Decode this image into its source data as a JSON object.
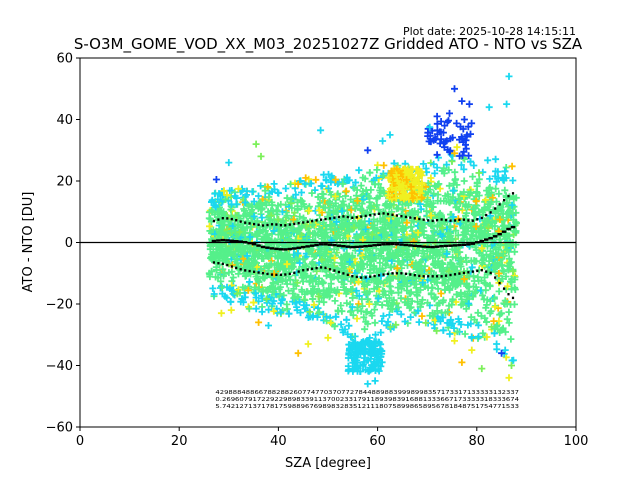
{
  "chart_data": {
    "type": "scatter",
    "plot_date": "Plot date: 2025-10-28 14:15:11",
    "title": "S-O3M_GOME_VOD_XX_M03_20251027Z Gridded ATO - NTO vs SZA",
    "xlabel": "SZA [degree]",
    "ylabel": "ATO - NTO [DU]",
    "xlim": [
      0,
      100
    ],
    "ylim": [
      -60,
      60
    ],
    "xticks": [
      "0",
      "20",
      "40",
      "60",
      "80",
      "100"
    ],
    "yticks": [
      "−60",
      "−40",
      "−20",
      "0",
      "20",
      "40",
      "60"
    ],
    "marker": "+",
    "colors": {
      "dense": "#55f08a",
      "cyan": "#1ad8f0",
      "green": "#7cf05a",
      "yellow": "#f0f020",
      "orange": "#ffc000",
      "blue": "#1040f0",
      "black": "#000000",
      "zero_line": "#000000"
    },
    "sza_bins": [
      27,
      29,
      31,
      33,
      35,
      37,
      39,
      41,
      43,
      45,
      47,
      49,
      51,
      53,
      55,
      57,
      59,
      61,
      63,
      65,
      67,
      69,
      71,
      73,
      75,
      77,
      79,
      81,
      83,
      85,
      87
    ],
    "mean": [
      0.5,
      0.8,
      0.5,
      0.2,
      -0.5,
      -1.5,
      -2,
      -2.3,
      -2,
      -1.5,
      -1,
      -0.5,
      -0.8,
      -1.2,
      -1.5,
      -1.3,
      -1,
      -0.6,
      -0.5,
      -0.7,
      -1,
      -1.3,
      -1.5,
      -1.2,
      -1,
      -0.8,
      -0.5,
      0.5,
      1.5,
      3,
      5
    ],
    "mean_plus_std": [
      7,
      8,
      7.5,
      6.5,
      6,
      5.5,
      6,
      5.5,
      6,
      6.5,
      7,
      7.5,
      8,
      8.5,
      8,
      8.5,
      9,
      9.5,
      9,
      8.5,
      8,
      7.5,
      7,
      7.5,
      7,
      7.5,
      7,
      8,
      10,
      13,
      16
    ],
    "mean_minus_std": [
      -6.5,
      -7,
      -8,
      -9,
      -9.5,
      -10,
      -10.5,
      -10.5,
      -10,
      -9,
      -8.5,
      -8,
      -9,
      -10,
      -11,
      -11.5,
      -11,
      -10.5,
      -10,
      -10,
      -10.5,
      -11,
      -11,
      -11,
      -10.5,
      -10,
      -9.5,
      -9,
      -10,
      -14,
      -18
    ],
    "spread_upper": [
      16,
      17,
      17,
      18,
      18,
      19,
      19,
      20,
      20,
      21,
      22,
      22,
      23,
      23,
      24,
      24,
      25,
      26,
      26,
      27,
      26,
      26,
      27,
      28,
      29,
      28,
      27,
      26,
      25,
      24,
      22
    ],
    "spread_lower": [
      -18,
      -19,
      -20,
      -21,
      -22,
      -23,
      -24,
      -24,
      -24,
      -25,
      -25,
      -26,
      -28,
      -30,
      -32,
      -36,
      -34,
      -30,
      -28,
      -27,
      -28,
      -30,
      -31,
      -30,
      -30,
      -31,
      -32,
      -33,
      -34,
      -36,
      -40
    ],
    "outliers": [
      {
        "x": 27.5,
        "y": 20.5,
        "c": "blue"
      },
      {
        "x": 30,
        "y": 26,
        "c": "cyan"
      },
      {
        "x": 35.5,
        "y": 32,
        "c": "green"
      },
      {
        "x": 36.5,
        "y": 28,
        "c": "green"
      },
      {
        "x": 36,
        "y": -26,
        "c": "orange"
      },
      {
        "x": 38,
        "y": -27,
        "c": "cyan"
      },
      {
        "x": 44,
        "y": -36,
        "c": "orange"
      },
      {
        "x": 46,
        "y": -33,
        "c": "yellow"
      },
      {
        "x": 48.5,
        "y": 36.5,
        "c": "cyan"
      },
      {
        "x": 50,
        "y": -31,
        "c": "yellow"
      },
      {
        "x": 56.5,
        "y": -40,
        "c": "cyan"
      },
      {
        "x": 58,
        "y": -46,
        "c": "cyan"
      },
      {
        "x": 59.5,
        "y": -45,
        "c": "cyan"
      },
      {
        "x": 58,
        "y": 30,
        "c": "blue"
      },
      {
        "x": 61,
        "y": 33,
        "c": "cyan"
      },
      {
        "x": 62.5,
        "y": 35,
        "c": "cyan"
      },
      {
        "x": 70.5,
        "y": 37.5,
        "c": "cyan"
      },
      {
        "x": 72,
        "y": 41,
        "c": "blue"
      },
      {
        "x": 73.5,
        "y": 38,
        "c": "blue"
      },
      {
        "x": 74.5,
        "y": 42,
        "c": "blue"
      },
      {
        "x": 75.5,
        "y": 50,
        "c": "blue"
      },
      {
        "x": 77,
        "y": 46,
        "c": "blue"
      },
      {
        "x": 77.5,
        "y": 40,
        "c": "blue"
      },
      {
        "x": 78.5,
        "y": 45,
        "c": "blue"
      },
      {
        "x": 82.5,
        "y": 44,
        "c": "cyan"
      },
      {
        "x": 86.5,
        "y": 54,
        "c": "cyan"
      },
      {
        "x": 86,
        "y": 45,
        "c": "cyan"
      },
      {
        "x": 76,
        "y": 31,
        "c": "yellow"
      },
      {
        "x": 75.5,
        "y": 29,
        "c": "orange"
      },
      {
        "x": 67,
        "y": 22,
        "c": "yellow"
      },
      {
        "x": 65.5,
        "y": 24,
        "c": "yellow"
      },
      {
        "x": 64,
        "y": 20,
        "c": "yellow"
      },
      {
        "x": 75.5,
        "y": -32,
        "c": "yellow"
      },
      {
        "x": 77,
        "y": -39,
        "c": "orange"
      },
      {
        "x": 79,
        "y": -35,
        "c": "yellow"
      },
      {
        "x": 81,
        "y": -41,
        "c": "green"
      },
      {
        "x": 85,
        "y": -36,
        "c": "blue"
      },
      {
        "x": 86.5,
        "y": -44,
        "c": "yellow"
      },
      {
        "x": 87,
        "y": -40,
        "c": "green"
      },
      {
        "x": 84,
        "y": -33,
        "c": "cyan"
      },
      {
        "x": 44,
        "y": 19,
        "c": "orange"
      },
      {
        "x": 45.5,
        "y": 21,
        "c": "orange"
      },
      {
        "x": 30.5,
        "y": -22,
        "c": "yellow"
      },
      {
        "x": 28.5,
        "y": -23,
        "c": "yellow"
      }
    ],
    "annotation_rows": [
      "4298884886678828826077477037077278448898839998998357173317133333132337",
      "0.26960791722922989833911370023317911893983916881333667173333318333674",
      "5.74212713717817598896769898328351211180758998658956781848751754771533"
    ]
  }
}
